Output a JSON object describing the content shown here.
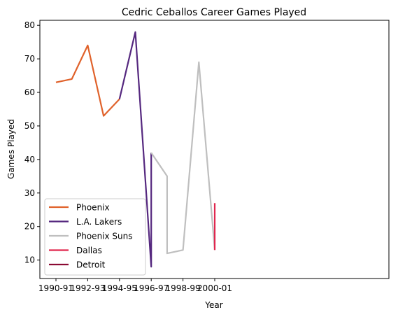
{
  "chart_data": {
    "type": "line",
    "title": "Cedric Ceballos Career Games Played",
    "xlabel": "Year",
    "ylabel": "Games Played",
    "x_ticks": [
      "1990-91",
      "1992-93",
      "1994-95",
      "1996-97",
      "1998-99",
      "2000-01"
    ],
    "y_ticks": [
      10,
      20,
      30,
      40,
      50,
      60,
      70,
      80
    ],
    "ylim": [
      4.5,
      81.5
    ],
    "grid": false,
    "legend_position": "lower-left",
    "series": [
      {
        "name": "Phoenix",
        "color": "#e0622b",
        "points": [
          {
            "x": "1990-91",
            "y": 63
          },
          {
            "x": "1991-92",
            "y": 64
          },
          {
            "x": "1992-93",
            "y": 74
          },
          {
            "x": "1993-94",
            "y": 53
          },
          {
            "x": "1994-95",
            "y": 58
          }
        ]
      },
      {
        "name": "L.A. Lakers",
        "color": "#55287f",
        "points": [
          {
            "x": "1994-95",
            "y": 58
          },
          {
            "x": "1995-96",
            "y": 78
          },
          {
            "x": "1996-97",
            "y": 8
          },
          {
            "x": "1996-97",
            "y": 42
          }
        ]
      },
      {
        "name": "Phoenix Suns",
        "color": "#bfbfbf",
        "points": [
          {
            "x": "1996-97",
            "y": 42
          },
          {
            "x": "1997-98",
            "y": 35
          },
          {
            "x": "1997-98",
            "y": 12
          },
          {
            "x": "1998-99",
            "y": 13
          },
          {
            "x": "1999-00",
            "y": 69
          },
          {
            "x": "2000-01",
            "y": 13
          }
        ]
      },
      {
        "name": "Dallas",
        "color": "#e0274e",
        "points": [
          {
            "x": "2000-01",
            "y": 13
          },
          {
            "x": "2000-01",
            "y": 27
          }
        ]
      },
      {
        "name": "Detroit",
        "color": "#8b0a33",
        "points": [
          {
            "x": "2000-01",
            "y": 13
          },
          {
            "x": "2000-01",
            "y": 13
          }
        ]
      }
    ]
  }
}
